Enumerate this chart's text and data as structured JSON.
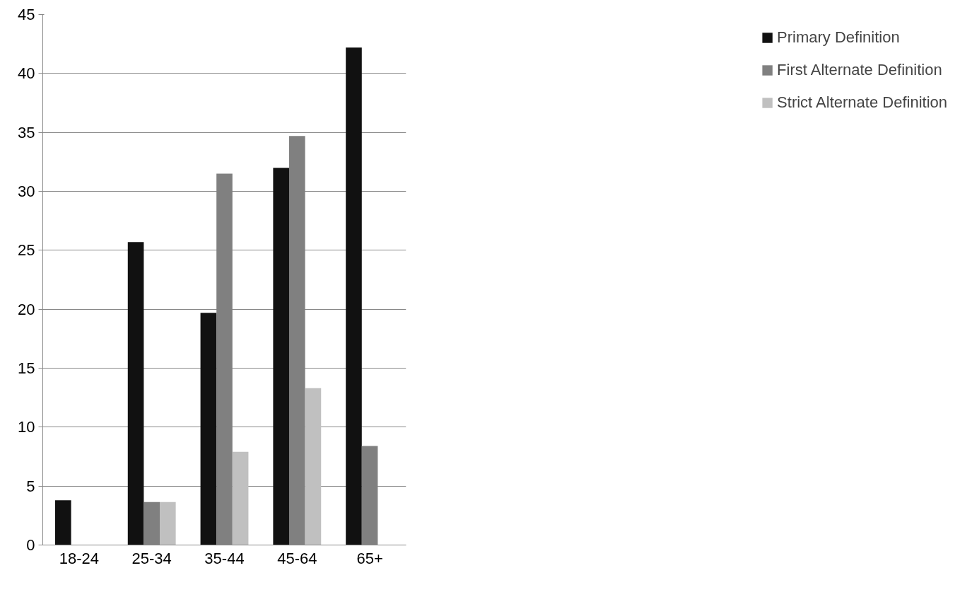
{
  "chart_data": {
    "type": "bar",
    "categories": [
      "18-24",
      "25-34",
      "35-44",
      "45-64",
      "65+"
    ],
    "series": [
      {
        "name": "Primary Definition",
        "color": "#111111",
        "values": [
          3.8,
          25.7,
          19.7,
          32.0,
          42.2
        ]
      },
      {
        "name": "First Alternate Definition",
        "color": "#808080",
        "values": [
          0,
          3.65,
          31.5,
          34.7,
          8.4
        ]
      },
      {
        "name": "Strict Alternate Definition",
        "color": "#c0c0c0",
        "values": [
          0,
          3.65,
          7.9,
          13.3,
          0
        ]
      }
    ],
    "ylim": [
      0,
      45
    ],
    "yticks": [
      0,
      5,
      10,
      15,
      20,
      25,
      30,
      35,
      40,
      45
    ],
    "grid": "y",
    "legend": "right"
  }
}
